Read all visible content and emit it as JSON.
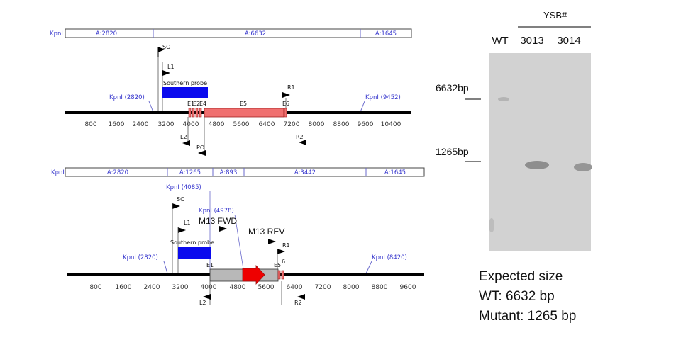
{
  "map1": {
    "header_left": "KpnI",
    "segments": [
      "A:2820",
      "A:6632",
      "A:1645"
    ],
    "ticks": [
      "800",
      "1600",
      "2400",
      "3200",
      "4000",
      "4800",
      "5600",
      "6400",
      "7200",
      "8000",
      "8800",
      "9600",
      "10400"
    ],
    "kpn_left": "KpnI (2820)",
    "kpn_right": "KpnI (9452)",
    "southern_probe": "Southern probe",
    "primers_top": [
      "SO",
      "L1",
      "R1"
    ],
    "primers_bottom": [
      "L2",
      "PO",
      "R2"
    ],
    "exons": [
      "E1",
      "E2",
      "E4",
      "E5",
      "E6"
    ]
  },
  "map2": {
    "header_left": "KpnI",
    "segments": [
      "A:2820",
      "A:1265",
      "A:893",
      "A:3442",
      "A:1645"
    ],
    "ticks": [
      "800",
      "1600",
      "2400",
      "3200",
      "4000",
      "4800",
      "5600",
      "6400",
      "7200",
      "8000",
      "8800",
      "9600"
    ],
    "kpn_left": "KpnI (2820)",
    "kpn_4085": "KpnI (4085)",
    "kpn_4978": "KpnI (4978)",
    "kpn_right": "KpnI (8420)",
    "southern_probe": "Southern probe",
    "m13_fwd": "M13 FWD",
    "m13_rev": "M13 REV",
    "primers_top": [
      "SO",
      "L1",
      "R1"
    ],
    "primers_bottom": [
      "L2",
      "R2"
    ],
    "exons": [
      "E1",
      "E5",
      "6"
    ]
  },
  "gel": {
    "group_label": "YSB#",
    "lanes": [
      "WT",
      "3013",
      "3014"
    ],
    "markers": [
      "6632bp",
      "1265bp"
    ]
  },
  "expected": {
    "title": "Expected size",
    "wt": "WT: 6632 bp",
    "mutant": "Mutant: 1265 bp"
  }
}
